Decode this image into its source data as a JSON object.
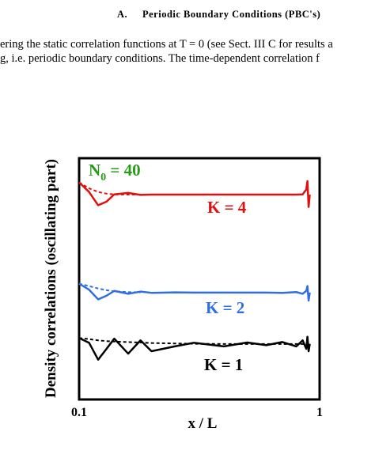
{
  "header": {
    "number": "A.",
    "title": "Periodic Boundary Conditions (PBC's)"
  },
  "body": {
    "lines": [
      "ering the static correlation functions at T = 0 (see Sect. III C for results a",
      "g, i.e.  periodic boundary conditions.  The time-dependent correlation f"
    ]
  },
  "chart_data": {
    "type": "line",
    "xlabel": "x / L",
    "ylabel": "Density  correlations (oscillating part)",
    "xscale": "log",
    "xlim": [
      0.1,
      1
    ],
    "xticks": [
      0.1,
      1
    ],
    "ylim": [
      0,
      10
    ],
    "annotations": [
      {
        "text": "N",
        "sub": "0",
        "rest": " = 40",
        "color": "#2a9a1a"
      },
      {
        "text": "K = 4",
        "color": "#e01010"
      },
      {
        "text": "K = 2",
        "color": "#2f6fe0"
      },
      {
        "text": "K = 1",
        "color": "#000000"
      }
    ],
    "x": [
      0.1,
      0.11,
      0.12,
      0.13,
      0.14,
      0.16,
      0.18,
      0.2,
      0.25,
      0.3,
      0.4,
      0.5,
      0.6,
      0.7,
      0.8,
      0.85,
      0.88,
      0.89,
      0.9,
      0.91
    ],
    "series": [
      {
        "color": "#e01010",
        "linestyle": "solid",
        "values": [
          9.0,
          8.6,
          8.05,
          8.2,
          8.5,
          8.56,
          8.48,
          8.49,
          8.49,
          8.49,
          8.49,
          8.49,
          8.49,
          8.49,
          8.49,
          8.5,
          8.7,
          9.05,
          7.98,
          8.49
        ]
      },
      {
        "color": "#e01010",
        "linestyle": "dashed",
        "values": [
          9.0,
          8.75,
          8.6,
          8.53,
          8.5,
          8.49,
          8.49,
          null,
          null,
          null,
          null,
          null,
          null,
          null,
          null,
          null,
          null,
          null,
          null,
          null
        ]
      },
      {
        "color": "#2f6fe0",
        "linestyle": "solid",
        "values": [
          4.8,
          4.55,
          4.15,
          4.3,
          4.5,
          4.38,
          4.47,
          4.42,
          4.44,
          4.43,
          4.43,
          4.43,
          4.43,
          4.42,
          4.45,
          4.38,
          4.5,
          4.7,
          4.1,
          4.43
        ]
      },
      {
        "color": "#2f6fe0",
        "linestyle": "dashed",
        "values": [
          4.8,
          4.7,
          4.6,
          4.53,
          4.48,
          4.45,
          4.44,
          null,
          null,
          null,
          null,
          null,
          null,
          null,
          null,
          null,
          null,
          null,
          null,
          null
        ]
      },
      {
        "color": "#000000",
        "linestyle": "solid",
        "values": [
          2.55,
          2.35,
          1.65,
          2.1,
          2.52,
          1.9,
          2.45,
          2.0,
          2.2,
          2.35,
          2.2,
          2.36,
          2.25,
          2.38,
          2.2,
          2.45,
          2.1,
          2.6,
          2.0,
          2.3
        ]
      },
      {
        "color": "#000000",
        "linestyle": "dashed",
        "values": [
          2.55,
          2.5,
          2.45,
          2.42,
          2.4,
          2.38,
          2.36,
          2.34,
          2.32,
          2.31,
          2.3,
          2.3,
          2.3,
          2.3,
          2.3,
          2.3,
          2.3,
          2.3,
          2.3,
          2.3
        ]
      }
    ]
  }
}
